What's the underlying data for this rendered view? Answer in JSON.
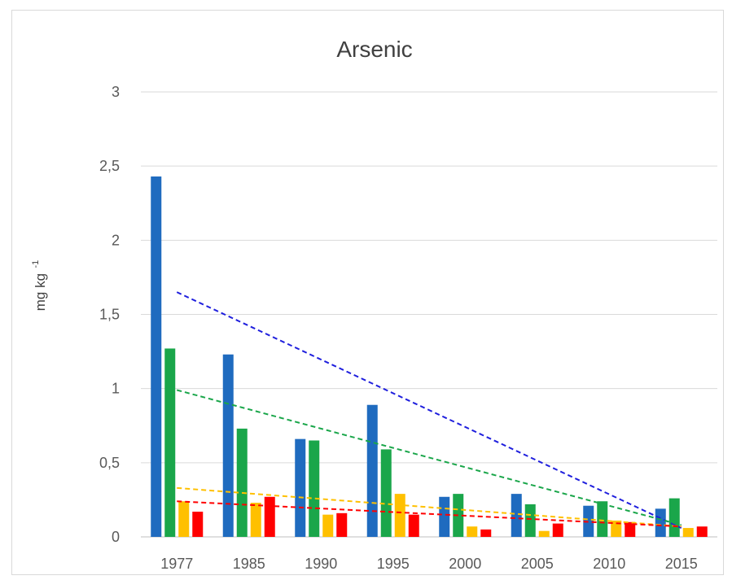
{
  "chart_data": {
    "type": "bar",
    "title": "Arsenic",
    "xlabel": "",
    "ylabel": "mg kg",
    "ylabel_superscript": "-1",
    "ylim": [
      0,
      3
    ],
    "yticks": [
      "0",
      "0,5",
      "1",
      "1,5",
      "2",
      "2,5",
      "3"
    ],
    "grid": true,
    "categories": [
      "1977",
      "1985",
      "1990",
      "1995",
      "2000",
      "2005",
      "2010",
      "2015"
    ],
    "series": [
      {
        "color": "#1f6bbf",
        "values": [
          2.43,
          1.23,
          0.66,
          0.89,
          0.27,
          0.29,
          0.21,
          0.19
        ]
      },
      {
        "color": "#1aa64a",
        "values": [
          1.27,
          0.73,
          0.65,
          0.59,
          0.29,
          0.22,
          0.24,
          0.26
        ]
      },
      {
        "color": "#ffc000",
        "values": [
          0.24,
          0.23,
          0.15,
          0.29,
          0.07,
          0.04,
          0.11,
          0.06
        ]
      },
      {
        "color": "#ff0000",
        "values": [
          0.17,
          0.27,
          0.16,
          0.15,
          0.05,
          0.09,
          0.1,
          0.07
        ]
      }
    ],
    "trendlines": [
      {
        "color": "#1f1fdd",
        "style": "dashed",
        "start": [
          1977,
          1.65
        ],
        "end": [
          2015,
          0.06
        ]
      },
      {
        "color": "#1aa64a",
        "style": "dashed",
        "start": [
          1977,
          0.99
        ],
        "end": [
          2015,
          0.08
        ]
      },
      {
        "color": "#ffc000",
        "style": "dashed",
        "start": [
          1977,
          0.33
        ],
        "end": [
          2015,
          0.07
        ]
      },
      {
        "color": "#ff0000",
        "style": "dashed",
        "start": [
          1977,
          0.24
        ],
        "end": [
          2015,
          0.07
        ]
      }
    ]
  }
}
